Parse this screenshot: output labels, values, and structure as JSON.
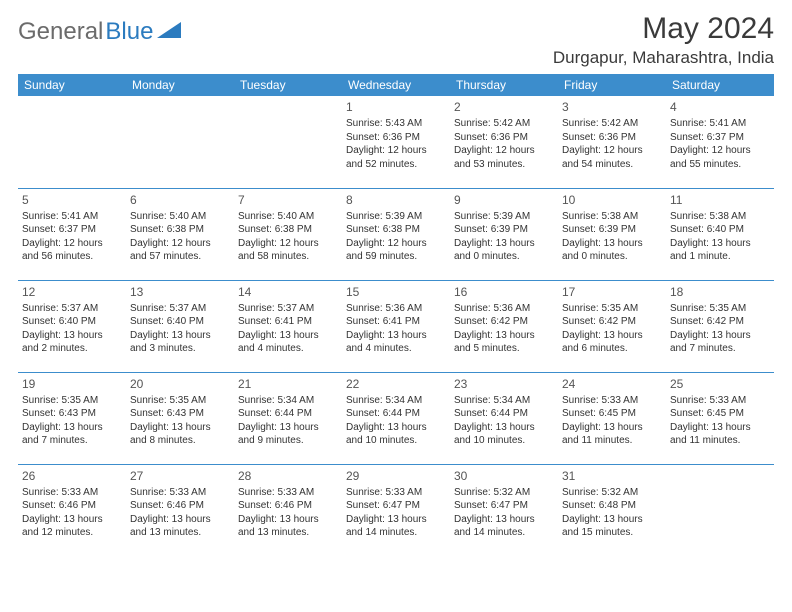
{
  "logo": {
    "text_general": "General",
    "text_blue": "Blue"
  },
  "title": {
    "month": "May 2024",
    "location": "Durgapur, Maharashtra, India"
  },
  "colors": {
    "header_bg": "#3c8dcc",
    "header_fg": "#ffffff",
    "rule": "#3c8dcc",
    "logo_gray": "#6b6b6b",
    "logo_blue": "#2b7bbf"
  },
  "weekdays": [
    "Sunday",
    "Monday",
    "Tuesday",
    "Wednesday",
    "Thursday",
    "Friday",
    "Saturday"
  ],
  "weeks": [
    [
      null,
      null,
      null,
      {
        "n": "1",
        "sr": "5:43 AM",
        "ss": "6:36 PM",
        "dl": "12 hours and 52 minutes."
      },
      {
        "n": "2",
        "sr": "5:42 AM",
        "ss": "6:36 PM",
        "dl": "12 hours and 53 minutes."
      },
      {
        "n": "3",
        "sr": "5:42 AM",
        "ss": "6:36 PM",
        "dl": "12 hours and 54 minutes."
      },
      {
        "n": "4",
        "sr": "5:41 AM",
        "ss": "6:37 PM",
        "dl": "12 hours and 55 minutes."
      }
    ],
    [
      {
        "n": "5",
        "sr": "5:41 AM",
        "ss": "6:37 PM",
        "dl": "12 hours and 56 minutes."
      },
      {
        "n": "6",
        "sr": "5:40 AM",
        "ss": "6:38 PM",
        "dl": "12 hours and 57 minutes."
      },
      {
        "n": "7",
        "sr": "5:40 AM",
        "ss": "6:38 PM",
        "dl": "12 hours and 58 minutes."
      },
      {
        "n": "8",
        "sr": "5:39 AM",
        "ss": "6:38 PM",
        "dl": "12 hours and 59 minutes."
      },
      {
        "n": "9",
        "sr": "5:39 AM",
        "ss": "6:39 PM",
        "dl": "13 hours and 0 minutes."
      },
      {
        "n": "10",
        "sr": "5:38 AM",
        "ss": "6:39 PM",
        "dl": "13 hours and 0 minutes."
      },
      {
        "n": "11",
        "sr": "5:38 AM",
        "ss": "6:40 PM",
        "dl": "13 hours and 1 minute."
      }
    ],
    [
      {
        "n": "12",
        "sr": "5:37 AM",
        "ss": "6:40 PM",
        "dl": "13 hours and 2 minutes."
      },
      {
        "n": "13",
        "sr": "5:37 AM",
        "ss": "6:40 PM",
        "dl": "13 hours and 3 minutes."
      },
      {
        "n": "14",
        "sr": "5:37 AM",
        "ss": "6:41 PM",
        "dl": "13 hours and 4 minutes."
      },
      {
        "n": "15",
        "sr": "5:36 AM",
        "ss": "6:41 PM",
        "dl": "13 hours and 4 minutes."
      },
      {
        "n": "16",
        "sr": "5:36 AM",
        "ss": "6:42 PM",
        "dl": "13 hours and 5 minutes."
      },
      {
        "n": "17",
        "sr": "5:35 AM",
        "ss": "6:42 PM",
        "dl": "13 hours and 6 minutes."
      },
      {
        "n": "18",
        "sr": "5:35 AM",
        "ss": "6:42 PM",
        "dl": "13 hours and 7 minutes."
      }
    ],
    [
      {
        "n": "19",
        "sr": "5:35 AM",
        "ss": "6:43 PM",
        "dl": "13 hours and 7 minutes."
      },
      {
        "n": "20",
        "sr": "5:35 AM",
        "ss": "6:43 PM",
        "dl": "13 hours and 8 minutes."
      },
      {
        "n": "21",
        "sr": "5:34 AM",
        "ss": "6:44 PM",
        "dl": "13 hours and 9 minutes."
      },
      {
        "n": "22",
        "sr": "5:34 AM",
        "ss": "6:44 PM",
        "dl": "13 hours and 10 minutes."
      },
      {
        "n": "23",
        "sr": "5:34 AM",
        "ss": "6:44 PM",
        "dl": "13 hours and 10 minutes."
      },
      {
        "n": "24",
        "sr": "5:33 AM",
        "ss": "6:45 PM",
        "dl": "13 hours and 11 minutes."
      },
      {
        "n": "25",
        "sr": "5:33 AM",
        "ss": "6:45 PM",
        "dl": "13 hours and 11 minutes."
      }
    ],
    [
      {
        "n": "26",
        "sr": "5:33 AM",
        "ss": "6:46 PM",
        "dl": "13 hours and 12 minutes."
      },
      {
        "n": "27",
        "sr": "5:33 AM",
        "ss": "6:46 PM",
        "dl": "13 hours and 13 minutes."
      },
      {
        "n": "28",
        "sr": "5:33 AM",
        "ss": "6:46 PM",
        "dl": "13 hours and 13 minutes."
      },
      {
        "n": "29",
        "sr": "5:33 AM",
        "ss": "6:47 PM",
        "dl": "13 hours and 14 minutes."
      },
      {
        "n": "30",
        "sr": "5:32 AM",
        "ss": "6:47 PM",
        "dl": "13 hours and 14 minutes."
      },
      {
        "n": "31",
        "sr": "5:32 AM",
        "ss": "6:48 PM",
        "dl": "13 hours and 15 minutes."
      },
      null
    ]
  ],
  "labels": {
    "sunrise": "Sunrise:",
    "sunset": "Sunset:",
    "daylight": "Daylight:"
  }
}
